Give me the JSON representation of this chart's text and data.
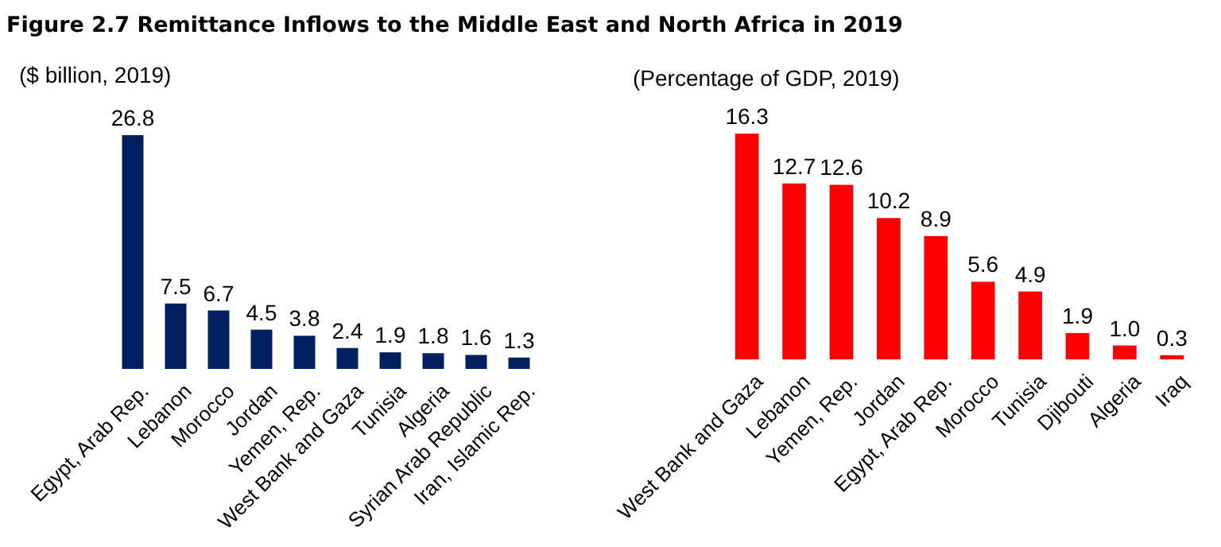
{
  "chart_data": [
    {
      "type": "bar",
      "title": "Figure 2.7 Remittance Inflows to the Middle East and North Africa in 2019",
      "subtitle": "($ billion, 2019)",
      "categories": [
        "Egypt, Arab Rep.",
        "Lebanon",
        "Morocco",
        "Jordan",
        "Yemen, Rep.",
        "West Bank and Gaza",
        "Tunisia",
        "Algeria",
        "Syrian Arab Republic",
        "Iran, Islamic Rep."
      ],
      "values": [
        26.8,
        7.5,
        6.7,
        4.5,
        3.8,
        2.4,
        1.9,
        1.8,
        1.6,
        1.3
      ],
      "color": "#002060",
      "data_labels": true
    },
    {
      "type": "bar",
      "subtitle": "(Percentage of GDP, 2019)",
      "categories": [
        "West Bank and Gaza",
        "Lebanon",
        "Yemen, Rep.",
        "Jordan",
        "Egypt, Arab Rep.",
        "Morocco",
        "Tunisia",
        "Djibouti",
        "Algeria",
        "Iraq"
      ],
      "values": [
        16.3,
        12.7,
        12.6,
        10.2,
        8.9,
        5.6,
        4.9,
        1.9,
        1.0,
        0.3
      ],
      "value_labels": [
        "16.3",
        "12.7",
        "12.6",
        "10.2",
        "8.9",
        "5.6",
        "4.9",
        "1.9",
        "1.0",
        "0.3"
      ],
      "color": "#ff0000"
    }
  ]
}
